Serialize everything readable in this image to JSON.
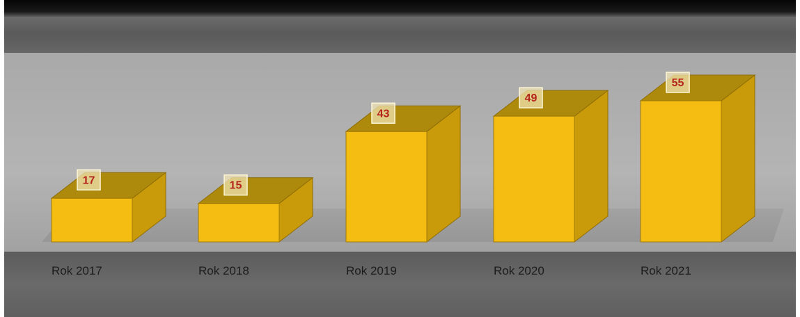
{
  "chart_data": {
    "type": "bar",
    "style": "3d",
    "categories": [
      "Rok 2017",
      "Rok 2018",
      "Rok 2019",
      "Rok 2020",
      "Rok 2021"
    ],
    "values": [
      17,
      15,
      43,
      49,
      55
    ],
    "ylim": [
      0,
      55
    ],
    "grid": false,
    "data_labels": true
  },
  "colors": {
    "bar_front": "#f5bd12",
    "bar_side": "#c99a09",
    "bar_top": "#ad8a0c",
    "label_box": "#f3e6b6",
    "value_text": "#b5241c",
    "top_band": "#5e5e5e",
    "plot_band": "#aeaeae",
    "bottom_band": "#626262"
  }
}
